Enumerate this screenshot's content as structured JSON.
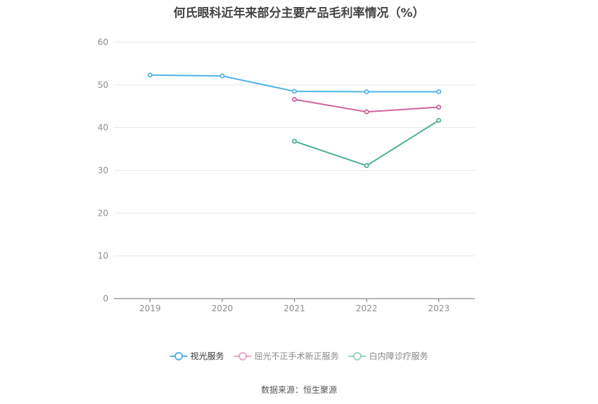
{
  "title": "何氏眼科近年来部分主要产品毛利率情况（%）",
  "source": "数据来源：恒生聚源",
  "chart_data": {
    "type": "line",
    "title": "何氏眼科近年来部分主要产品毛利率情况（%）",
    "x": [
      "2019",
      "2020",
      "2021",
      "2022",
      "2023"
    ],
    "ylim": [
      0,
      60
    ],
    "yticks": [
      0,
      10,
      20,
      30,
      40,
      50,
      60
    ],
    "grid": true,
    "legend_position": "bottom",
    "series": [
      {
        "name": "视光服务",
        "color": "#4fb4ea",
        "values": [
          52.3,
          52.1,
          48.5,
          48.4,
          48.4
        ]
      },
      {
        "name": "屈光不正手术新正服务",
        "color": "#d262a0",
        "values": [
          null,
          null,
          46.6,
          43.7,
          44.8
        ]
      },
      {
        "name": "白内障诊疗服务",
        "color": "#4dae96",
        "values": [
          null,
          null,
          36.8,
          31.1,
          41.7
        ]
      }
    ]
  }
}
